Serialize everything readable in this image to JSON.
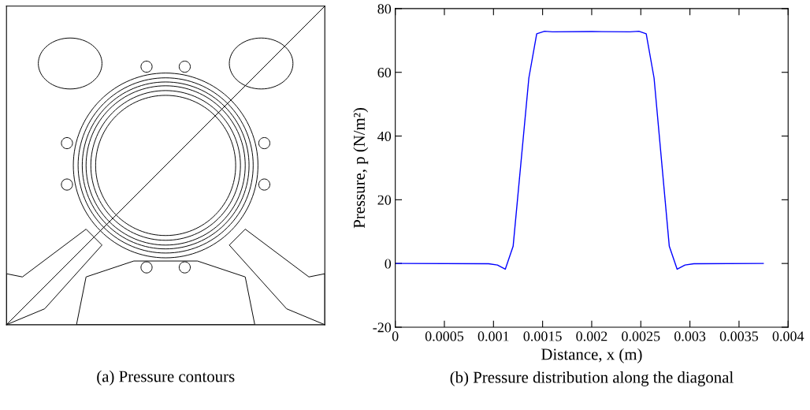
{
  "chart_data": [
    {
      "type": "other",
      "title": "(a) Pressure contours"
    },
    {
      "type": "line",
      "title": "(b) Pressure distribution along the diagonal",
      "xlabel": "Distance, x (m)",
      "ylabel": "Pressure, p (N/m²)",
      "series": [
        {
          "color": "#0000ff",
          "x": [
            0,
            0.00095,
            0.00104,
            0.00112,
            0.0012,
            0.00136,
            0.00144,
            0.00152,
            0.0016,
            0.002,
            0.00239,
            0.00248,
            0.002555,
            0.002635,
            0.00279,
            0.00287,
            0.00295,
            0.00304,
            0.003747
          ],
          "values": [
            0,
            -0.1,
            -0.5,
            -1.8,
            5.4,
            58.2,
            72.1,
            72.9,
            72.7,
            72.8,
            72.7,
            72.9,
            72.1,
            58.2,
            5.4,
            -1.8,
            -0.5,
            -0.1,
            0
          ]
        }
      ],
      "xlim": [
        0,
        0.004
      ],
      "xticks": [
        0,
        0.0005,
        0.001,
        0.0015,
        0.002,
        0.0025,
        0.003,
        0.0035,
        0.004
      ],
      "ylim": [
        -20,
        80
      ],
      "yticks": [
        {
          "value": -20,
          "label": "-20"
        },
        0,
        20,
        40,
        60,
        80
      ],
      "grid": false,
      "legend": false
    }
  ]
}
